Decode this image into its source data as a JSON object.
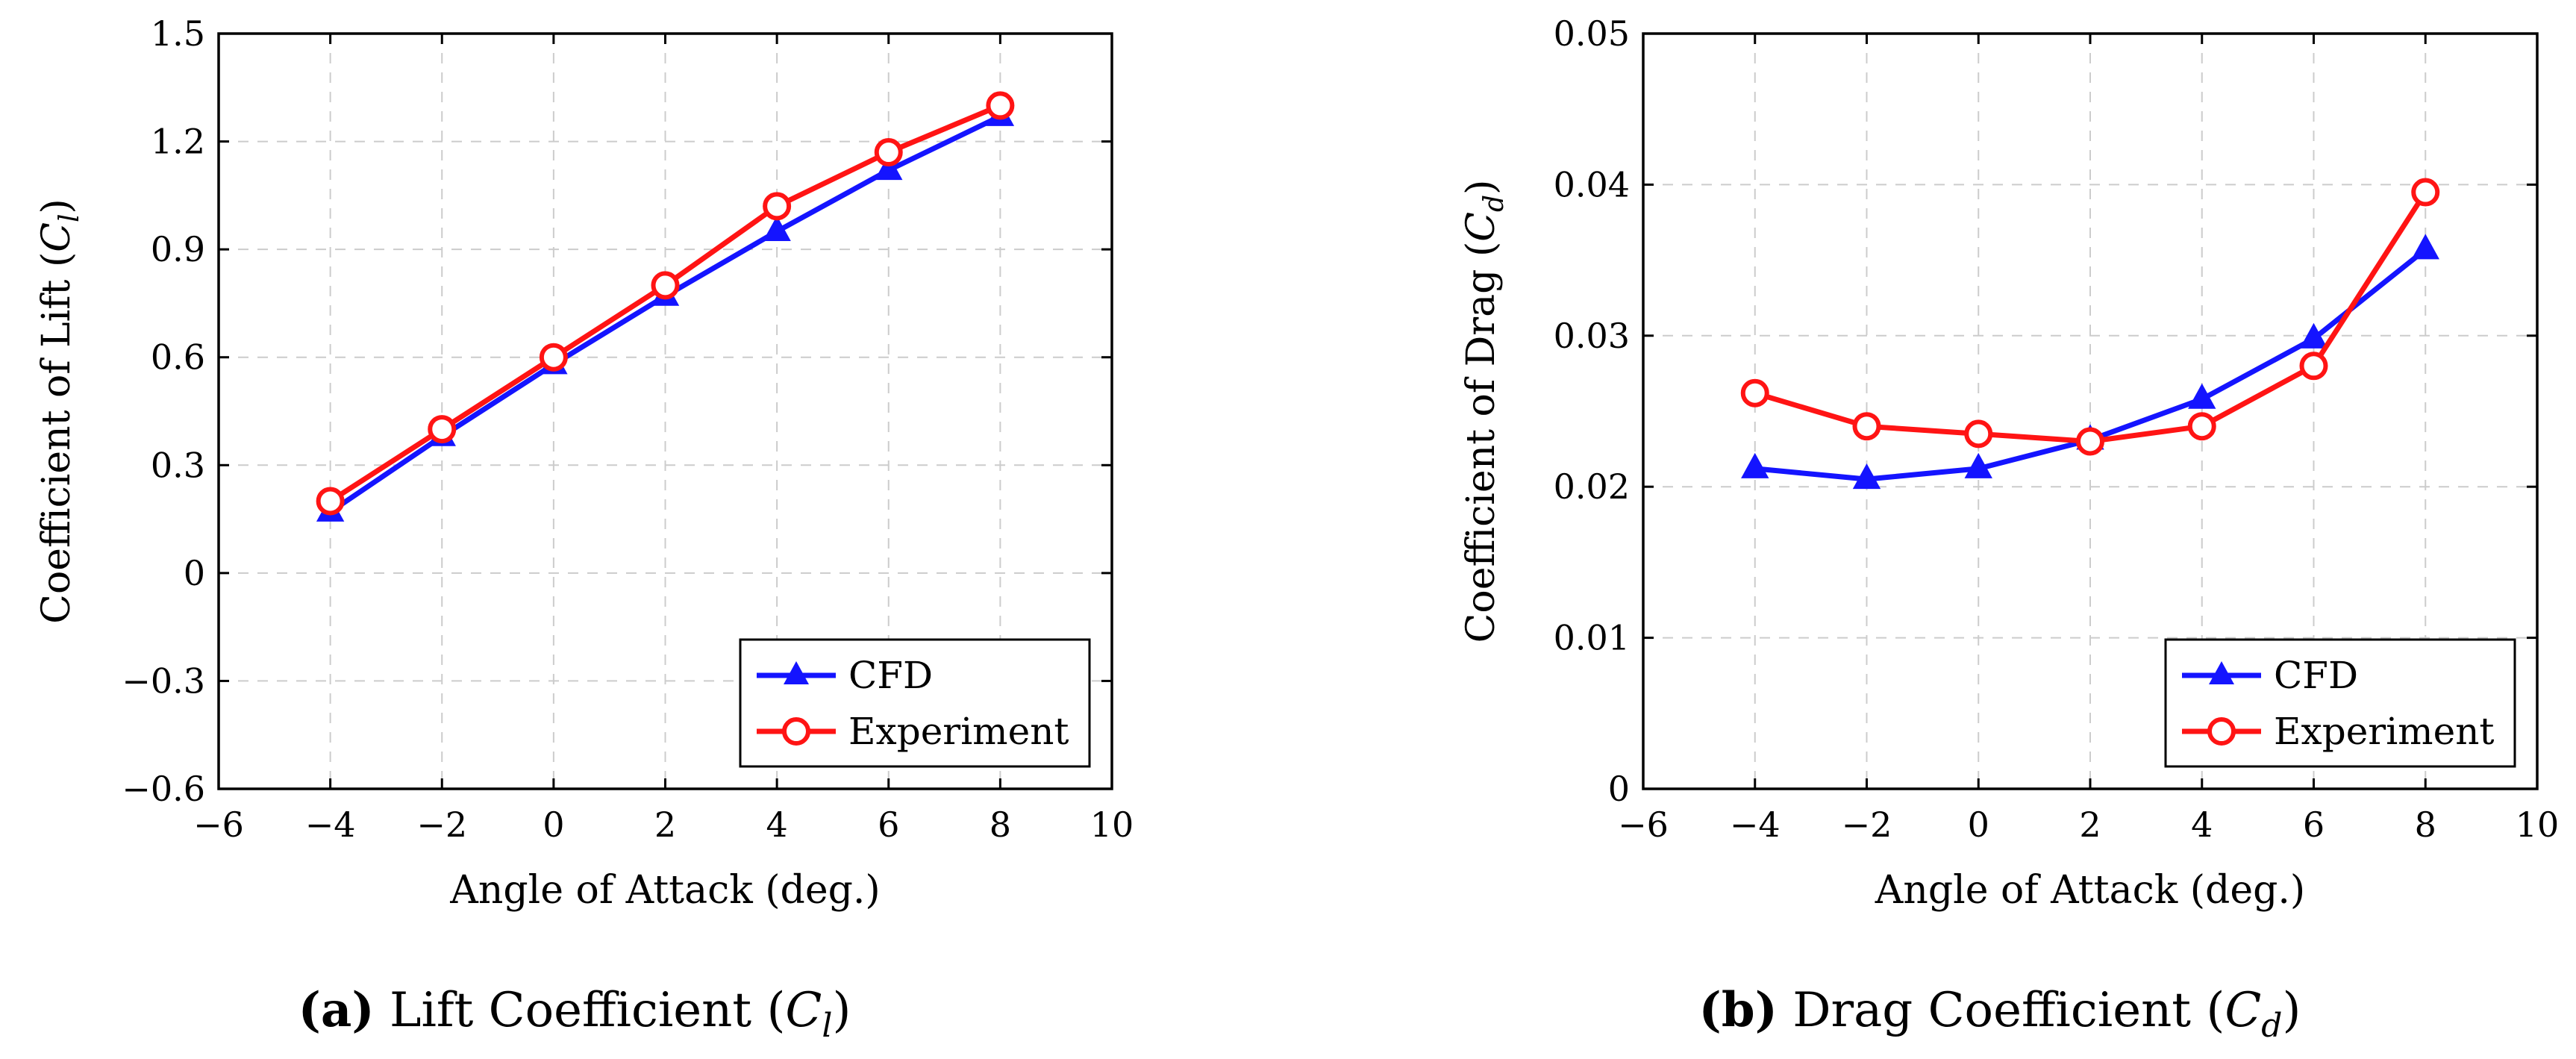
{
  "colors": {
    "cfd": "#1414ff",
    "experiment": "#ff1414",
    "grid": "#cccccc"
  },
  "chart_data": [
    {
      "type": "line",
      "caption_label": "(a)",
      "caption_text": "Lift Coefficient (",
      "caption_symbol": "C",
      "caption_subscript": "l",
      "caption_close": ")",
      "xlabel": "Angle of Attack (deg.)",
      "ylabel_prefix": "Coefficient of Lift (",
      "ylabel_symbol": "C",
      "ylabel_subscript": "l",
      "ylabel_suffix": ")",
      "xlim": [
        -6,
        10
      ],
      "ylim": [
        -0.6,
        1.5
      ],
      "xticks": [
        -6,
        -4,
        -2,
        0,
        2,
        4,
        6,
        8,
        10
      ],
      "xtick_labels": [
        "−6",
        "−4",
        "−2",
        "0",
        "2",
        "4",
        "6",
        "8",
        "10"
      ],
      "yticks": [
        -0.6,
        -0.3,
        0,
        0.3,
        0.6,
        0.9,
        1.2,
        1.5
      ],
      "ytick_labels": [
        "−0.6",
        "−0.3",
        "0",
        "0.3",
        "0.6",
        "0.9",
        "1.2",
        "1.5"
      ],
      "grid": true,
      "legend_position": "bottom-right",
      "x": [
        -4,
        -2,
        0,
        2,
        4,
        6,
        8
      ],
      "series": [
        {
          "name": "CFD",
          "marker": "triangle",
          "values": [
            0.17,
            0.38,
            0.58,
            0.77,
            0.95,
            1.12,
            1.27
          ]
        },
        {
          "name": "Experiment",
          "marker": "circle",
          "values": [
            0.2,
            0.4,
            0.6,
            0.8,
            1.02,
            1.17,
            1.3
          ]
        }
      ]
    },
    {
      "type": "line",
      "caption_label": "(b)",
      "caption_text": "Drag Coefficient (",
      "caption_symbol": "C",
      "caption_subscript": "d",
      "caption_close": ")",
      "xlabel": "Angle of Attack (deg.)",
      "ylabel_prefix": "Coefficient of Drag (",
      "ylabel_symbol": "C",
      "ylabel_subscript": "d",
      "ylabel_suffix": ")",
      "xlim": [
        -6,
        10
      ],
      "ylim": [
        0,
        0.05
      ],
      "xticks": [
        -6,
        -4,
        -2,
        0,
        2,
        4,
        6,
        8,
        10
      ],
      "xtick_labels": [
        "−6",
        "−4",
        "−2",
        "0",
        "2",
        "4",
        "6",
        "8",
        "10"
      ],
      "yticks": [
        0,
        0.01,
        0.02,
        0.03,
        0.04,
        0.05
      ],
      "ytick_labels": [
        "0",
        "0.01",
        "0.02",
        "0.03",
        "0.04",
        "0.05"
      ],
      "grid": true,
      "legend_position": "bottom-right",
      "x": [
        -4,
        -2,
        0,
        2,
        4,
        6,
        8
      ],
      "series": [
        {
          "name": "CFD",
          "marker": "triangle",
          "values": [
            0.0212,
            0.0205,
            0.0212,
            0.0231,
            0.0258,
            0.0298,
            0.0357
          ]
        },
        {
          "name": "Experiment",
          "marker": "circle",
          "values": [
            0.0262,
            0.024,
            0.0235,
            0.023,
            0.024,
            0.028,
            0.0395
          ]
        }
      ]
    }
  ]
}
